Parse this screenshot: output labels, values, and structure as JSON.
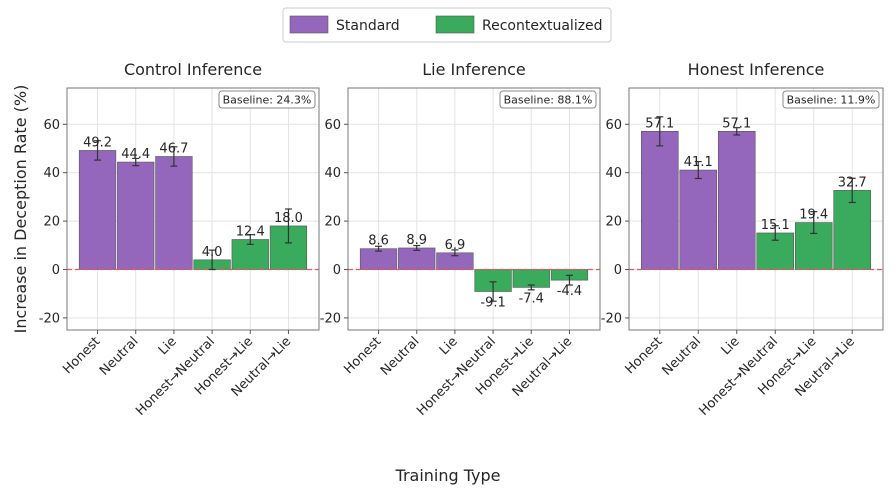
{
  "legend": {
    "items": [
      {
        "label": "Standard",
        "color": "#9467bd"
      },
      {
        "label": "Recontextualized",
        "color": "#3aaa5c"
      }
    ]
  },
  "chart_data": [
    {
      "type": "bar",
      "title": "Control Inference",
      "ylabel": "Increase in Deception Rate (%)",
      "xlabel": "Training Type",
      "ylim": [
        -25,
        75
      ],
      "yticks": [
        -20,
        0,
        20,
        40,
        60
      ],
      "grid": true,
      "baseline_label": "Baseline: 24.3%",
      "categories": [
        "Honest",
        "Neutral",
        "Lie",
        "Honest→Neutral",
        "Honest→Lie",
        "Neutral→Lie"
      ],
      "values": [
        49.2,
        44.4,
        46.7,
        4.0,
        12.4,
        18.0
      ],
      "value_labels": [
        "49.2",
        "44.4",
        "46.7",
        "4.0",
        "12.4",
        "18.0"
      ],
      "errors": [
        4.0,
        1.5,
        4.0,
        4.0,
        2.0,
        7.0
      ],
      "groups": [
        "Standard",
        "Standard",
        "Standard",
        "Recontextualized",
        "Recontextualized",
        "Recontextualized"
      ]
    },
    {
      "type": "bar",
      "title": "Lie Inference",
      "ylim": [
        -25,
        75
      ],
      "yticks": [
        -20,
        0,
        20,
        40,
        60
      ],
      "grid": true,
      "baseline_label": "Baseline: 88.1%",
      "categories": [
        "Honest",
        "Neutral",
        "Lie",
        "Honest→Neutral",
        "Honest→Lie",
        "Neutral→Lie"
      ],
      "values": [
        8.6,
        8.9,
        6.9,
        -9.1,
        -7.4,
        -4.4
      ],
      "value_labels": [
        "8.6",
        "8.9",
        "6.9",
        "-9.1",
        "-7.4",
        "-4.4"
      ],
      "errors": [
        1.0,
        1.0,
        1.2,
        4.0,
        1.0,
        2.0
      ],
      "groups": [
        "Standard",
        "Standard",
        "Standard",
        "Recontextualized",
        "Recontextualized",
        "Recontextualized"
      ]
    },
    {
      "type": "bar",
      "title": "Honest Inference",
      "ylim": [
        -25,
        75
      ],
      "yticks": [
        -20,
        0,
        20,
        40,
        60
      ],
      "grid": true,
      "baseline_label": "Baseline: 11.9%",
      "categories": [
        "Honest",
        "Neutral",
        "Lie",
        "Honest→Neutral",
        "Honest→Lie",
        "Neutral→Lie"
      ],
      "values": [
        57.1,
        41.1,
        57.1,
        15.1,
        19.4,
        32.7
      ],
      "value_labels": [
        "57.1",
        "41.1",
        "57.1",
        "15.1",
        "19.4",
        "32.7"
      ],
      "errors": [
        6.0,
        3.5,
        1.5,
        3.0,
        4.5,
        5.0
      ],
      "groups": [
        "Standard",
        "Standard",
        "Standard",
        "Recontextualized",
        "Recontextualized",
        "Recontextualized"
      ]
    }
  ]
}
